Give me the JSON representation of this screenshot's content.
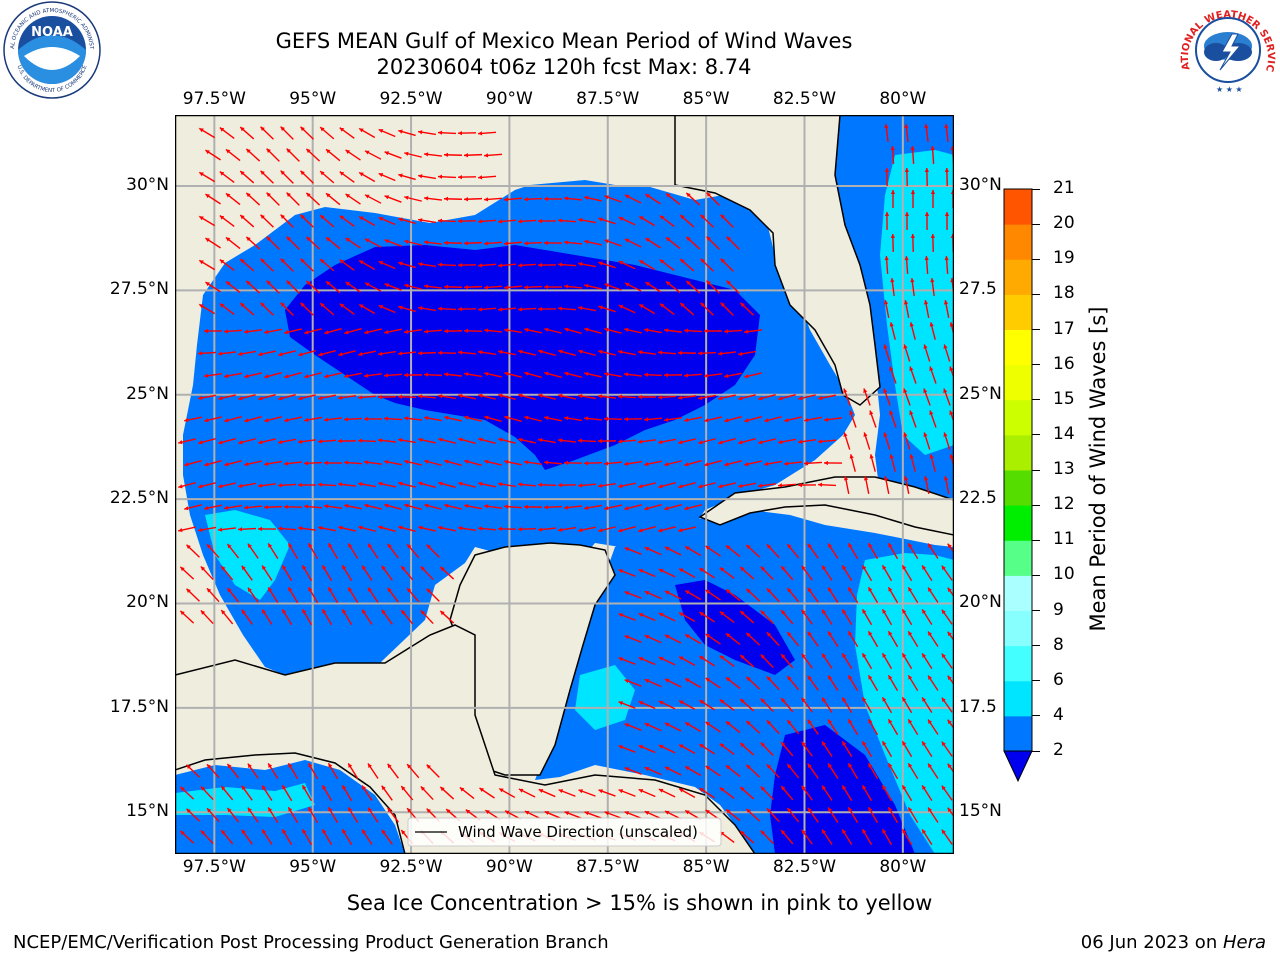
{
  "title_line1": "GEFS MEAN Gulf of Mexico Mean Period of Wind Waves",
  "title_line2": "20230604 t06z 120h fcst   Max: 8.74",
  "noaa_logo": {
    "name": "noaa-logo",
    "text": "NOAA",
    "ring_top": "NATIONAL OCEANIC AND ATMOSPHERIC ADMINISTRATION",
    "ring_bottom": "U.S. DEPARTMENT OF COMMERCE"
  },
  "nws_logo": {
    "name": "nws-logo",
    "ring_text": "NATIONAL WEATHER SERVICE"
  },
  "map": {
    "lon_range": [
      -98.5,
      -78.7
    ],
    "lat_range": [
      14.0,
      31.7
    ],
    "lon_ticks": [
      "97.5°W",
      "95°W",
      "92.5°W",
      "90°W",
      "87.5°W",
      "85°W",
      "82.5°W",
      "80°W"
    ],
    "lon_tick_values": [
      -97.5,
      -95,
      -92.5,
      -90,
      -87.5,
      -85,
      -82.5,
      -80
    ],
    "lat_ticks": [
      "30°N",
      "27.5°N",
      "25°N",
      "22.5°N",
      "20°N",
      "17.5°N",
      "15°N"
    ],
    "lat_tick_values": [
      30,
      27.5,
      25,
      22.5,
      20,
      17.5,
      15
    ],
    "lat_ticks_right": [
      "30°N",
      "27.5",
      "25°N",
      "22.5",
      "20°N",
      "17.5",
      "15°N"
    ],
    "legend_label": "Wind Wave Direction (unscaled)",
    "colors": {
      "land": "#efedde",
      "arrows": "#ff0000",
      "grid": "#b0b0b0"
    }
  },
  "colorbar": {
    "label": "Mean Period of Wind Waves [s]",
    "ticks": [
      "2",
      "4",
      "6",
      "8",
      "9",
      "10",
      "11",
      "12",
      "13",
      "14",
      "15",
      "16",
      "17",
      "18",
      "19",
      "20",
      "21"
    ],
    "colors": [
      "#0077ff",
      "#00e5ff",
      "#44ffff",
      "#88ffff",
      "#aaffff",
      "#55ff88",
      "#00ee00",
      "#55dd00",
      "#aaee00",
      "#ccff00",
      "#eeff00",
      "#ffff00",
      "#ffcc00",
      "#ffaa00",
      "#ff8800",
      "#ff5500",
      "#ff2200",
      "#ff0000"
    ],
    "under_color": "#0000ee"
  },
  "caption": "Sea Ice Concentration > 15% is shown in pink to yellow",
  "footer_left": "NCEP/EMC/Verification Post Processing Product Generation Branch",
  "footer_right_prefix": "06 Jun 2023 on ",
  "footer_right_host": "Hera"
}
